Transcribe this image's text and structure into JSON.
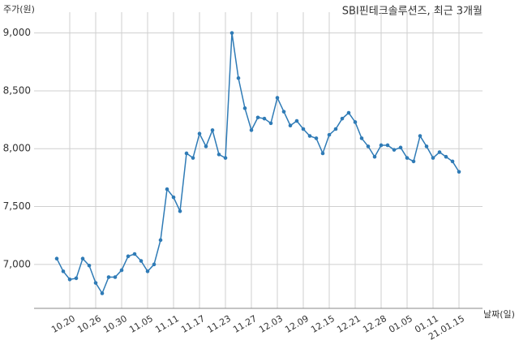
{
  "chart_data": {
    "type": "line",
    "title": "SBI핀테크솔루션즈, 최근 3개월",
    "y_label": "주가(원)",
    "x_label": "날짜(일)",
    "categories": [
      null,
      null,
      "10.20",
      null,
      null,
      null,
      "10.26",
      null,
      null,
      null,
      "10.30",
      null,
      null,
      null,
      "11.05",
      null,
      null,
      null,
      "11.11",
      null,
      null,
      null,
      "11.17",
      null,
      null,
      null,
      "11.23",
      null,
      null,
      null,
      "11.27",
      null,
      null,
      null,
      "12.03",
      null,
      null,
      null,
      "12.09",
      null,
      null,
      null,
      "12.15",
      null,
      null,
      null,
      "12.21",
      null,
      null,
      null,
      "12.28",
      null,
      null,
      null,
      "01.05",
      null,
      null,
      null,
      "01.11",
      null,
      null,
      null,
      "21.01.15"
    ],
    "series": [
      {
        "name": "주가",
        "color": "#2f7bb6",
        "values": [
          7050,
          6940,
          6870,
          6880,
          7050,
          6990,
          6840,
          6750,
          6890,
          6890,
          6950,
          7070,
          7090,
          7030,
          6940,
          7000,
          7210,
          7650,
          7580,
          7460,
          7960,
          7920,
          8130,
          8020,
          8160,
          7950,
          7920,
          9000,
          8610,
          8350,
          8160,
          8270,
          8260,
          8220,
          8440,
          8320,
          8200,
          8240,
          8170,
          8110,
          8090,
          7960,
          8120,
          8170,
          8260,
          8310,
          8230,
          8090,
          8020,
          7930,
          8030,
          8030,
          7990,
          8010,
          7920,
          7890,
          8110,
          8020,
          7920,
          7970,
          7930,
          7890,
          7800
        ]
      }
    ],
    "ylim": [
      6620,
      9180
    ],
    "yticks": [
      {
        "value": 7000,
        "label": "7,000"
      },
      {
        "value": 7500,
        "label": "7,500"
      },
      {
        "value": 8000,
        "label": "8,000"
      },
      {
        "value": 8500,
        "label": "8,500"
      },
      {
        "value": 9000,
        "label": "9,000"
      }
    ],
    "grid": true
  }
}
